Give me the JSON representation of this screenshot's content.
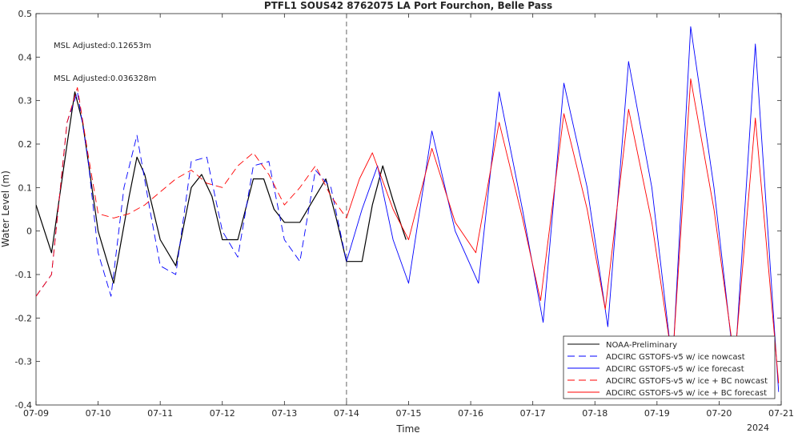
{
  "chart_data": {
    "type": "line",
    "title": "PTFL1 SOUS42 8762075 LA Port Fourchon, Belle Pass",
    "xlabel": "Time",
    "ylabel": "Water Level (m)",
    "x_start": "2024-07-09",
    "x_ticks": [
      "07-09",
      "07-10",
      "07-11",
      "07-12",
      "07-13",
      "07-14",
      "07-15",
      "07-16",
      "07-17",
      "07-18",
      "07-19",
      "07-20",
      "07-21"
    ],
    "x_year_label": "2024",
    "xlim": [
      "2024-07-09",
      "2024-07-21"
    ],
    "ylim": [
      -0.4,
      0.5
    ],
    "y_ticks": [
      "-0.4",
      "-0.3",
      "-0.2",
      "-0.1",
      "0",
      "0.1",
      "0.2",
      "0.3",
      "0.4",
      "0.5"
    ],
    "vline": "2024-07-14",
    "legend_position": "bottom-right",
    "annotations": [
      {
        "text": "MSL Adjusted:0.12653m",
        "color": "#0000ff"
      },
      {
        "text": "MSL Adjusted:0.036328m",
        "color": "#ff0000"
      }
    ],
    "series": [
      {
        "name": "NOAA-Preliminary",
        "color": "#000000",
        "dash": "solid",
        "x": [
          "2024-07-09 00:00",
          "2024-07-09 06:00",
          "2024-07-09 12:00",
          "2024-07-09 15:00",
          "2024-07-09 18:00",
          "2024-07-10 00:00",
          "2024-07-10 06:00",
          "2024-07-10 12:00",
          "2024-07-10 15:00",
          "2024-07-10 18:00",
          "2024-07-11 00:00",
          "2024-07-11 06:00",
          "2024-07-11 12:00",
          "2024-07-11 16:00",
          "2024-07-11 20:00",
          "2024-07-12 00:00",
          "2024-07-12 06:00",
          "2024-07-12 12:00",
          "2024-07-12 16:00",
          "2024-07-12 20:00",
          "2024-07-13 00:00",
          "2024-07-13 06:00",
          "2024-07-13 12:00",
          "2024-07-13 16:00",
          "2024-07-13 20:00",
          "2024-07-14 00:00",
          "2024-07-14 06:00",
          "2024-07-14 10:00",
          "2024-07-14 14:00",
          "2024-07-14 18:00",
          "2024-07-14 23:00"
        ],
        "y": [
          0.06,
          -0.05,
          0.2,
          0.32,
          0.25,
          0.0,
          -0.12,
          0.08,
          0.17,
          0.13,
          -0.02,
          -0.08,
          0.1,
          0.13,
          0.08,
          -0.02,
          -0.02,
          0.12,
          0.12,
          0.05,
          0.02,
          0.02,
          0.08,
          0.12,
          0.03,
          -0.07,
          -0.07,
          0.06,
          0.15,
          0.07,
          -0.02
        ]
      },
      {
        "name": "ADCIRC GSTOFS-v5 w/ ice nowcast",
        "color": "#0000ff",
        "dash": "dashed",
        "x": [
          "2024-07-09 00:00",
          "2024-07-09 06:00",
          "2024-07-09 12:00",
          "2024-07-09 16:00",
          "2024-07-09 20:00",
          "2024-07-10 00:00",
          "2024-07-10 05:00",
          "2024-07-10 10:00",
          "2024-07-10 15:00",
          "2024-07-10 20:00",
          "2024-07-11 00:00",
          "2024-07-11 06:00",
          "2024-07-11 12:00",
          "2024-07-11 18:00",
          "2024-07-12 00:00",
          "2024-07-12 06:00",
          "2024-07-12 12:00",
          "2024-07-12 18:00",
          "2024-07-13 00:00",
          "2024-07-13 06:00",
          "2024-07-13 12:00",
          "2024-07-13 18:00",
          "2024-07-14 00:00"
        ],
        "y": [
          -0.15,
          -0.1,
          0.25,
          0.32,
          0.17,
          -0.05,
          -0.15,
          0.1,
          0.22,
          0.05,
          -0.08,
          -0.1,
          0.16,
          0.17,
          0.0,
          -0.06,
          0.15,
          0.16,
          -0.02,
          -0.07,
          0.14,
          0.1,
          -0.07
        ]
      },
      {
        "name": "ADCIRC GSTOFS-v5 w/ ice forecast",
        "color": "#0000ff",
        "dash": "solid",
        "x": [
          "2024-07-14 00:00",
          "2024-07-14 06:00",
          "2024-07-14 12:00",
          "2024-07-14 18:00",
          "2024-07-15 00:00",
          "2024-07-15 09:00",
          "2024-07-15 18:00",
          "2024-07-16 03:00",
          "2024-07-16 11:00",
          "2024-07-16 20:00",
          "2024-07-17 04:00",
          "2024-07-17 12:00",
          "2024-07-17 21:00",
          "2024-07-18 05:00",
          "2024-07-18 13:00",
          "2024-07-18 22:00",
          "2024-07-19 06:00",
          "2024-07-19 13:00",
          "2024-07-19 22:00",
          "2024-07-20 06:00",
          "2024-07-20 14:00",
          "2024-07-20 23:00"
        ],
        "y": [
          -0.07,
          0.05,
          0.15,
          -0.02,
          -0.12,
          0.23,
          0.0,
          -0.12,
          0.32,
          0.05,
          -0.21,
          0.34,
          0.1,
          -0.22,
          0.39,
          0.1,
          -0.31,
          0.47,
          0.1,
          -0.32,
          0.43,
          -0.37
        ]
      },
      {
        "name": "ADCIRC GSTOFS-v5 w/ ice + BC nowcast",
        "color": "#ff0000",
        "dash": "dashed",
        "x": [
          "2024-07-09 00:00",
          "2024-07-09 06:00",
          "2024-07-09 12:00",
          "2024-07-09 16:00",
          "2024-07-09 20:00",
          "2024-07-10 00:00",
          "2024-07-10 06:00",
          "2024-07-10 12:00",
          "2024-07-10 18:00",
          "2024-07-11 00:00",
          "2024-07-11 06:00",
          "2024-07-11 12:00",
          "2024-07-11 18:00",
          "2024-07-12 00:00",
          "2024-07-12 06:00",
          "2024-07-12 12:00",
          "2024-07-12 18:00",
          "2024-07-13 00:00",
          "2024-07-13 06:00",
          "2024-07-13 12:00",
          "2024-07-13 18:00",
          "2024-07-14 00:00"
        ],
        "y": [
          -0.15,
          -0.1,
          0.25,
          0.33,
          0.18,
          0.04,
          0.03,
          0.04,
          0.06,
          0.09,
          0.12,
          0.14,
          0.11,
          0.1,
          0.15,
          0.18,
          0.13,
          0.06,
          0.1,
          0.15,
          0.08,
          0.03
        ]
      },
      {
        "name": "ADCIRC GSTOFS-v5 w/ ice + BC forecast",
        "color": "#ff0000",
        "dash": "solid",
        "x": [
          "2024-07-14 00:00",
          "2024-07-14 05:00",
          "2024-07-14 10:00",
          "2024-07-14 18:00",
          "2024-07-15 00:00",
          "2024-07-15 09:00",
          "2024-07-15 18:00",
          "2024-07-16 02:00",
          "2024-07-16 11:00",
          "2024-07-16 20:00",
          "2024-07-17 03:00",
          "2024-07-17 12:00",
          "2024-07-17 21:00",
          "2024-07-18 04:00",
          "2024-07-18 13:00",
          "2024-07-18 22:00",
          "2024-07-19 06:00",
          "2024-07-19 13:00",
          "2024-07-19 22:00",
          "2024-07-20 06:00",
          "2024-07-20 14:00",
          "2024-07-20 23:00"
        ],
        "y": [
          0.03,
          0.12,
          0.18,
          0.05,
          -0.02,
          0.19,
          0.02,
          -0.05,
          0.25,
          0.03,
          -0.16,
          0.27,
          0.05,
          -0.18,
          0.28,
          0.02,
          -0.3,
          0.35,
          0.05,
          -0.3,
          0.26,
          -0.35
        ]
      }
    ]
  }
}
